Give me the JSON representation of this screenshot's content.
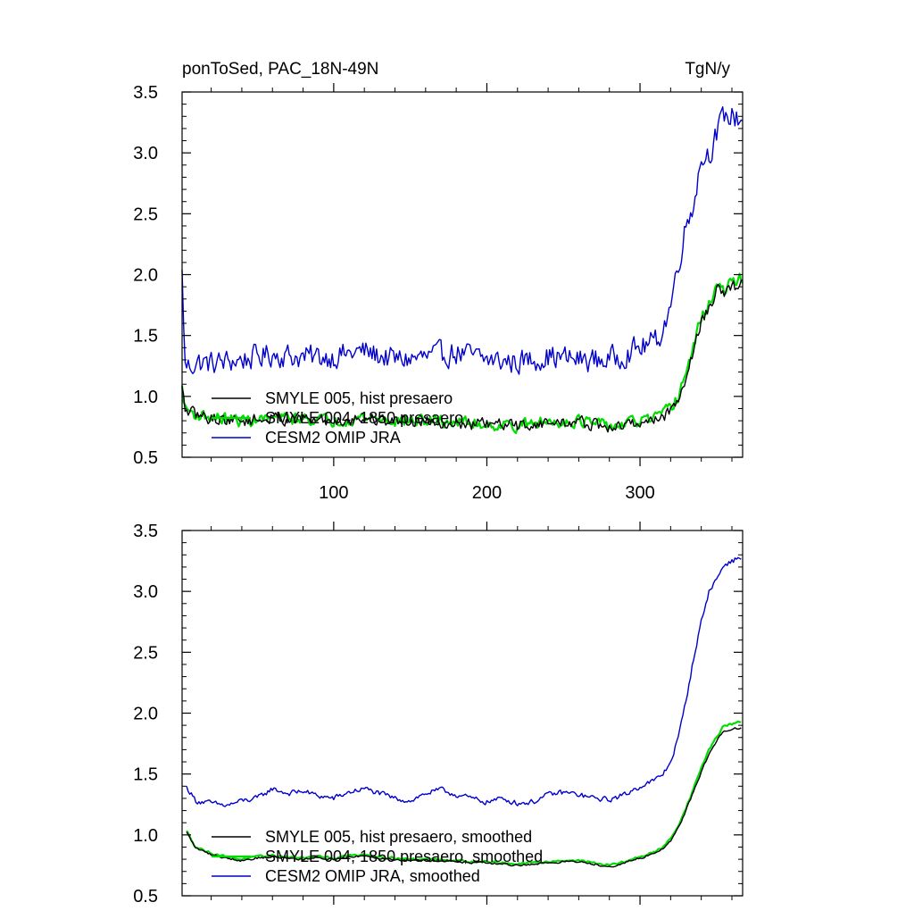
{
  "chart_data": [
    {
      "type": "line",
      "title_left": "ponToSed, PAC_18N-49N",
      "title_right": "TgN/y",
      "xlim": [
        1,
        367
      ],
      "ylim": [
        0.5,
        3.5
      ],
      "yticks": [
        "0.5",
        "1.0",
        "1.5",
        "2.0",
        "2.5",
        "3.0",
        "3.5"
      ],
      "xticks": [
        "100",
        "200",
        "300"
      ],
      "xtick_values": [
        100,
        200,
        300
      ],
      "grid": false,
      "legend_placement": "lower-left",
      "legend": [
        {
          "label": "SMYLE 005, hist presaero",
          "color": "#000000"
        },
        {
          "label": "SMYLE 004, 1850 presaero",
          "color": "#00dd00"
        },
        {
          "label": "CESM2 OMIP JRA",
          "color": "#0000cc"
        }
      ],
      "series": [
        {
          "name": "CESM2 OMIP JRA",
          "color": "#0000cc",
          "noise": 0.09,
          "x": [
            1,
            3,
            6,
            10,
            20,
            40,
            60,
            80,
            100,
            120,
            140,
            160,
            180,
            200,
            220,
            240,
            260,
            280,
            290,
            300,
            310,
            315,
            320,
            325,
            330,
            335,
            340,
            345,
            350,
            355,
            360,
            367
          ],
          "y": [
            2.0,
            1.25,
            1.25,
            1.28,
            1.27,
            1.3,
            1.35,
            1.32,
            1.33,
            1.37,
            1.3,
            1.32,
            1.36,
            1.3,
            1.28,
            1.33,
            1.3,
            1.3,
            1.35,
            1.4,
            1.45,
            1.55,
            1.75,
            2.1,
            2.4,
            2.6,
            2.95,
            3.0,
            3.15,
            3.3,
            3.3,
            3.28
          ]
        },
        {
          "name": "SMYLE 004, 1850 presaero",
          "color": "#00dd00",
          "noise": 0.045,
          "x": [
            1,
            3,
            6,
            10,
            20,
            40,
            60,
            80,
            100,
            120,
            140,
            160,
            180,
            200,
            220,
            240,
            260,
            280,
            290,
            300,
            310,
            315,
            320,
            325,
            330,
            335,
            340,
            345,
            350,
            355,
            360,
            367
          ],
          "y": [
            1.07,
            0.9,
            0.88,
            0.85,
            0.83,
            0.8,
            0.82,
            0.82,
            0.8,
            0.83,
            0.8,
            0.8,
            0.79,
            0.77,
            0.76,
            0.79,
            0.8,
            0.75,
            0.77,
            0.8,
            0.82,
            0.85,
            0.9,
            1.0,
            1.2,
            1.4,
            1.65,
            1.75,
            1.92,
            1.85,
            1.95,
            1.97
          ]
        },
        {
          "name": "SMYLE 005, hist presaero",
          "color": "#000000",
          "noise": 0.045,
          "x": [
            1,
            3,
            6,
            10,
            20,
            40,
            60,
            80,
            100,
            120,
            140,
            160,
            180,
            200,
            220,
            240,
            260,
            280,
            290,
            300,
            310,
            315,
            320,
            325,
            330,
            335,
            340,
            345,
            350,
            355,
            360,
            367
          ],
          "y": [
            1.06,
            0.89,
            0.87,
            0.85,
            0.82,
            0.8,
            0.82,
            0.81,
            0.8,
            0.82,
            0.8,
            0.8,
            0.78,
            0.77,
            0.76,
            0.78,
            0.79,
            0.74,
            0.76,
            0.79,
            0.81,
            0.84,
            0.88,
            0.98,
            1.17,
            1.37,
            1.62,
            1.72,
            1.88,
            1.82,
            1.9,
            1.92
          ]
        }
      ]
    },
    {
      "type": "line",
      "xlim": [
        1,
        367
      ],
      "ylim": [
        0.5,
        3.5
      ],
      "yticks": [
        "0.5",
        "1.0",
        "1.5",
        "2.0",
        "2.5",
        "3.0",
        "3.5"
      ],
      "xtick_values": [
        100,
        200,
        300
      ],
      "grid": false,
      "legend_placement": "lower-left",
      "legend": [
        {
          "label": "SMYLE 005, hist presaero, smoothed",
          "color": "#000000"
        },
        {
          "label": "SMYLE 004, 1850 presaero, smoothed",
          "color": "#00dd00"
        },
        {
          "label": "CESM2 OMIP JRA, smoothed",
          "color": "#0000cc"
        }
      ],
      "series": [
        {
          "name": "CESM2 OMIP JRA, smoothed",
          "color": "#0000cc",
          "noise": 0.02,
          "x": [
            4,
            10,
            20,
            30,
            40,
            50,
            60,
            70,
            80,
            90,
            100,
            110,
            120,
            130,
            140,
            150,
            160,
            170,
            180,
            190,
            200,
            210,
            220,
            230,
            240,
            250,
            260,
            270,
            280,
            290,
            300,
            310,
            315,
            320,
            325,
            330,
            335,
            340,
            345,
            350,
            355,
            360,
            366
          ],
          "y": [
            1.39,
            1.28,
            1.26,
            1.24,
            1.28,
            1.3,
            1.38,
            1.34,
            1.36,
            1.32,
            1.3,
            1.35,
            1.38,
            1.34,
            1.3,
            1.28,
            1.34,
            1.37,
            1.33,
            1.3,
            1.27,
            1.3,
            1.26,
            1.27,
            1.33,
            1.35,
            1.33,
            1.3,
            1.29,
            1.33,
            1.4,
            1.45,
            1.5,
            1.6,
            1.8,
            2.1,
            2.45,
            2.75,
            3.0,
            3.1,
            3.22,
            3.25,
            3.28
          ]
        },
        {
          "name": "SMYLE 004, 1850 presaero, smoothed",
          "color": "#00dd00",
          "noise": 0.008,
          "x": [
            4,
            10,
            20,
            30,
            40,
            50,
            60,
            70,
            80,
            90,
            100,
            110,
            120,
            130,
            140,
            150,
            160,
            170,
            180,
            190,
            200,
            210,
            220,
            230,
            240,
            250,
            260,
            270,
            280,
            290,
            300,
            310,
            315,
            320,
            325,
            330,
            335,
            340,
            345,
            350,
            355,
            360,
            366
          ],
          "y": [
            1.03,
            0.9,
            0.85,
            0.82,
            0.8,
            0.82,
            0.83,
            0.82,
            0.81,
            0.82,
            0.81,
            0.83,
            0.84,
            0.82,
            0.81,
            0.8,
            0.8,
            0.8,
            0.79,
            0.78,
            0.78,
            0.77,
            0.76,
            0.77,
            0.78,
            0.79,
            0.79,
            0.77,
            0.75,
            0.78,
            0.82,
            0.86,
            0.9,
            0.97,
            1.08,
            1.22,
            1.38,
            1.55,
            1.7,
            1.8,
            1.9,
            1.91,
            1.93
          ]
        },
        {
          "name": "SMYLE 005, hist presaero, smoothed",
          "color": "#000000",
          "noise": 0.008,
          "x": [
            4,
            10,
            20,
            30,
            40,
            50,
            60,
            70,
            80,
            90,
            100,
            110,
            120,
            130,
            140,
            150,
            160,
            170,
            180,
            190,
            200,
            210,
            220,
            230,
            240,
            250,
            260,
            270,
            280,
            290,
            300,
            310,
            315,
            320,
            325,
            330,
            335,
            340,
            345,
            350,
            355,
            360,
            366
          ],
          "y": [
            1.02,
            0.89,
            0.84,
            0.81,
            0.79,
            0.81,
            0.82,
            0.81,
            0.8,
            0.81,
            0.8,
            0.82,
            0.83,
            0.81,
            0.8,
            0.79,
            0.79,
            0.79,
            0.78,
            0.77,
            0.77,
            0.76,
            0.75,
            0.76,
            0.77,
            0.78,
            0.78,
            0.76,
            0.74,
            0.77,
            0.81,
            0.85,
            0.89,
            0.95,
            1.06,
            1.2,
            1.36,
            1.52,
            1.66,
            1.77,
            1.86,
            1.87,
            1.88
          ]
        }
      ]
    }
  ]
}
